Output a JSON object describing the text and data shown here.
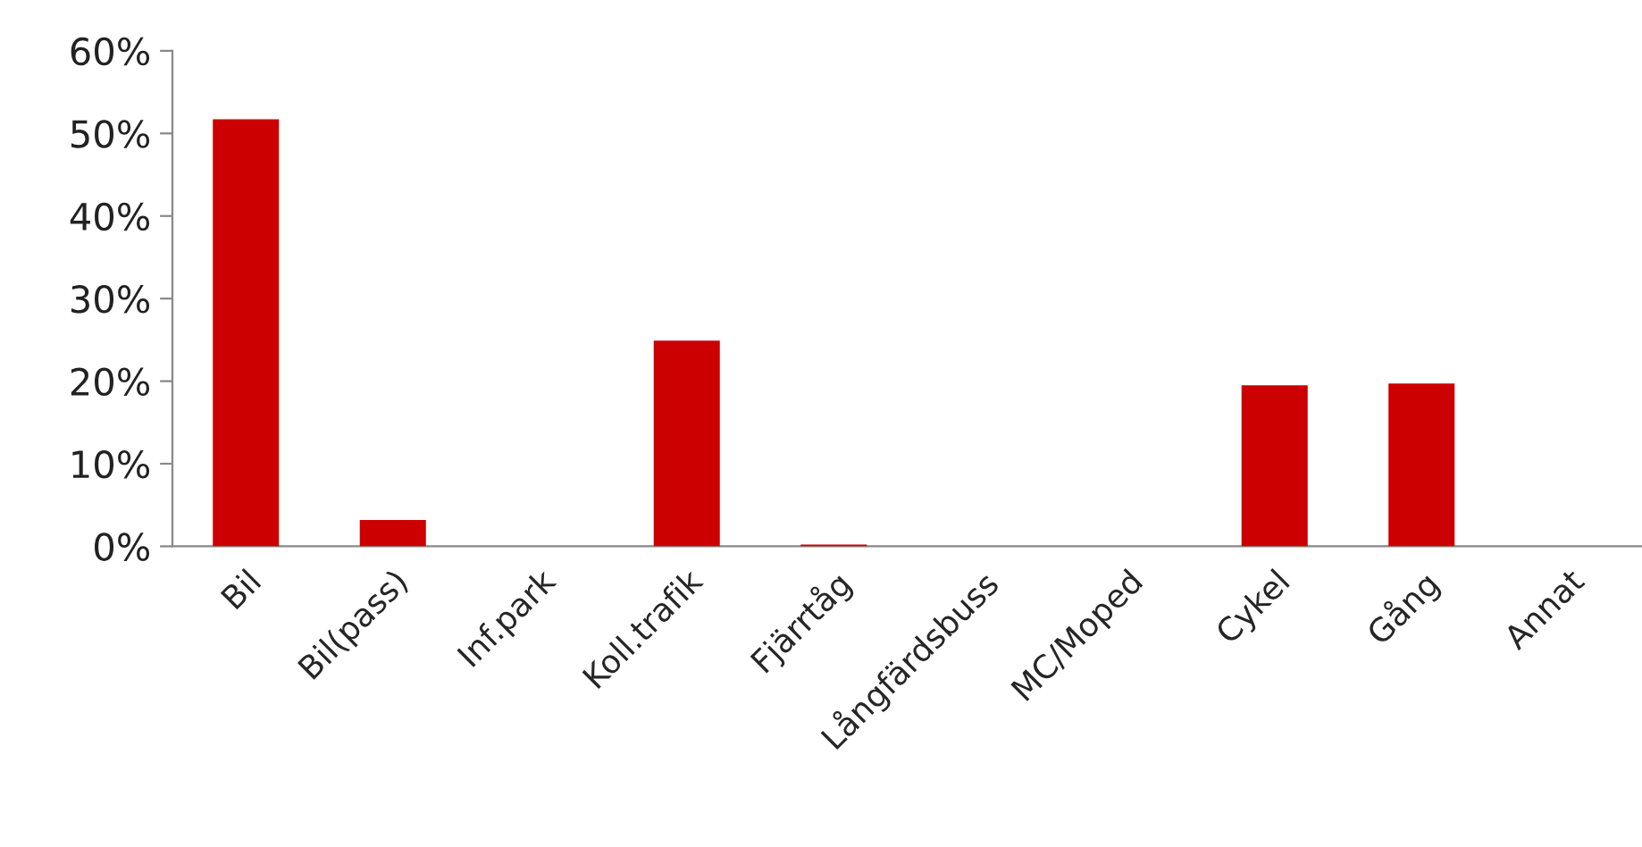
{
  "chart_data": {
    "type": "bar",
    "categories": [
      "Bil",
      "Bil(pass)",
      "Inf.park",
      "Koll.trafik",
      "Fjärrtåg",
      "Långfärdsbuss",
      "MC/Moped",
      "Cykel",
      "Gång",
      "Annat"
    ],
    "values": [
      51.7,
      3.2,
      0,
      24.9,
      0.2,
      0,
      0,
      19.5,
      19.7,
      0
    ],
    "color": "#cc0000",
    "ylim": [
      0,
      60
    ],
    "yticks": [
      {
        "value": 0,
        "label": "0%"
      },
      {
        "value": 10,
        "label": "10%"
      },
      {
        "value": 20,
        "label": "20%"
      },
      {
        "value": 30,
        "label": "30%"
      },
      {
        "value": 40,
        "label": "40%"
      },
      {
        "value": 50,
        "label": "50%"
      },
      {
        "value": 60,
        "label": "60%"
      }
    ],
    "grid": false
  }
}
